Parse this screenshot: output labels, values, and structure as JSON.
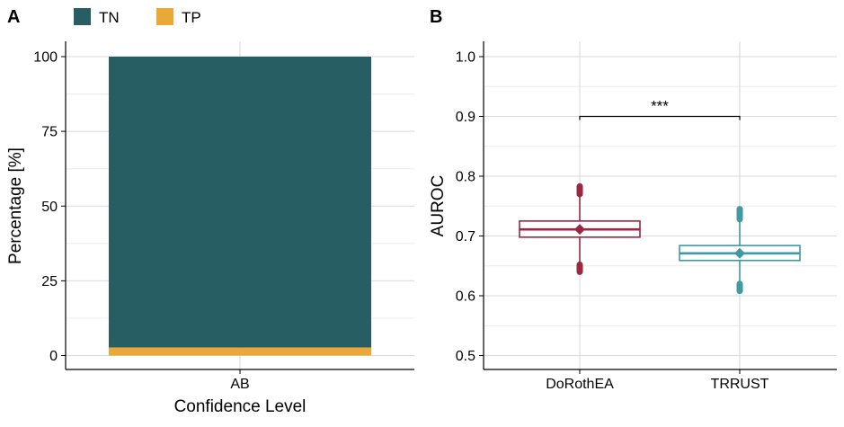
{
  "chart_data": [
    {
      "panel_label": "A",
      "type": "bar",
      "stacked": true,
      "categories": [
        "AB"
      ],
      "series": [
        {
          "name": "TN",
          "values": [
            97.3
          ],
          "color": "#275e63"
        },
        {
          "name": "TP",
          "values": [
            2.7
          ],
          "color": "#eaa937"
        }
      ],
      "xlabel": "Confidence Level",
      "ylabel": "Percentage [%]",
      "ylim": [
        0,
        100
      ],
      "yticks": [
        0,
        25,
        50,
        75,
        100
      ],
      "ytick_labels": [
        "0",
        "25",
        "50",
        "75",
        "100"
      ],
      "legend": {
        "position": "top-left",
        "entries": [
          "TN",
          "TP"
        ]
      },
      "grid": true
    },
    {
      "panel_label": "B",
      "type": "box",
      "categories": [
        "DoRothEA",
        "TRRUST"
      ],
      "boxes": [
        {
          "name": "DoRothEA",
          "q1": 0.698,
          "median": 0.711,
          "q3": 0.725,
          "whisker_low": 0.655,
          "whisker_high": 0.769,
          "mean": 0.711,
          "outliers_low": [
            0.64,
            0.652
          ],
          "outliers_high": [
            0.77,
            0.783
          ],
          "color": "#9b2743"
        },
        {
          "name": "TRRUST",
          "q1": 0.659,
          "median": 0.671,
          "q3": 0.684,
          "whisker_low": 0.622,
          "whisker_high": 0.726,
          "mean": 0.671,
          "outliers_low": [
            0.608,
            0.62
          ],
          "outliers_high": [
            0.728,
            0.745
          ],
          "color": "#3f9aa1"
        }
      ],
      "xlabel": "",
      "ylabel": "AUROC",
      "ylim": [
        0.5,
        1.0
      ],
      "yticks": [
        0.5,
        0.6,
        0.7,
        0.8,
        0.9,
        1.0
      ],
      "ytick_labels": [
        "0.5",
        "0.6",
        "0.7",
        "0.8",
        "0.9",
        "1.0"
      ],
      "annotation": {
        "text": "***",
        "y": 0.9,
        "from": "DoRothEA",
        "to": "TRRUST"
      },
      "grid": true
    }
  ]
}
